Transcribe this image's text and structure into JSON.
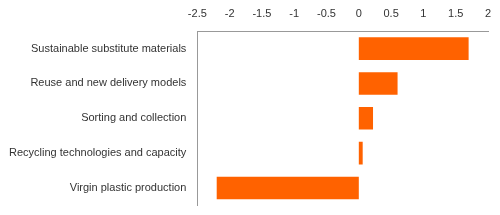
{
  "chart_data": {
    "type": "bar",
    "orientation": "horizontal",
    "categories": [
      "Sustainable substitute materials",
      "Reuse and new delivery models",
      "Sorting and collection",
      "Recycling technologies and capacity",
      "Virgin plastic production"
    ],
    "values": [
      1.7,
      0.6,
      0.22,
      0.06,
      -2.2
    ],
    "color": "#ff6200",
    "xlim": [
      -2.5,
      2
    ],
    "xticks": [
      -2.5,
      -2,
      -1.5,
      -1,
      -0.5,
      0,
      0.5,
      1,
      1.5,
      2
    ],
    "grid": false
  }
}
